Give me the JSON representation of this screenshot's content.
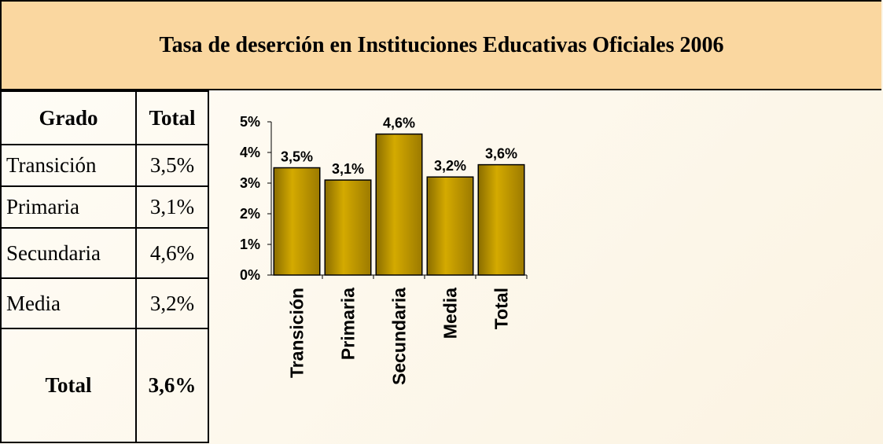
{
  "title": "Tasa de deserción en Instituciones Educativas Oficiales 2006",
  "table": {
    "header": [
      "Grado",
      "Total"
    ],
    "rows": [
      [
        "Transición",
        "3,5%"
      ],
      [
        "Primaria",
        "3,1%"
      ],
      [
        "Secundaria",
        "4,6%"
      ],
      [
        "Media",
        "3,2%"
      ],
      [
        "Total",
        "3,6%"
      ]
    ]
  },
  "chart_data": {
    "type": "bar",
    "categories": [
      "Transición",
      "Primaria",
      "Secundaria",
      "Media",
      "Total"
    ],
    "values": [
      3.5,
      3.1,
      4.6,
      3.2,
      3.6
    ],
    "value_labels": [
      "3,5%",
      "3,1%",
      "4,6%",
      "3,2%",
      "3,6%"
    ],
    "color": "#c8a000",
    "ylim": [
      0,
      5
    ],
    "yticks": [
      {
        "value": 0,
        "label": "0%"
      },
      {
        "value": 1,
        "label": "1%"
      },
      {
        "value": 2,
        "label": "2%"
      },
      {
        "value": 3,
        "label": "3%"
      },
      {
        "value": 4,
        "label": "4%"
      },
      {
        "value": 5,
        "label": "5%"
      }
    ]
  }
}
